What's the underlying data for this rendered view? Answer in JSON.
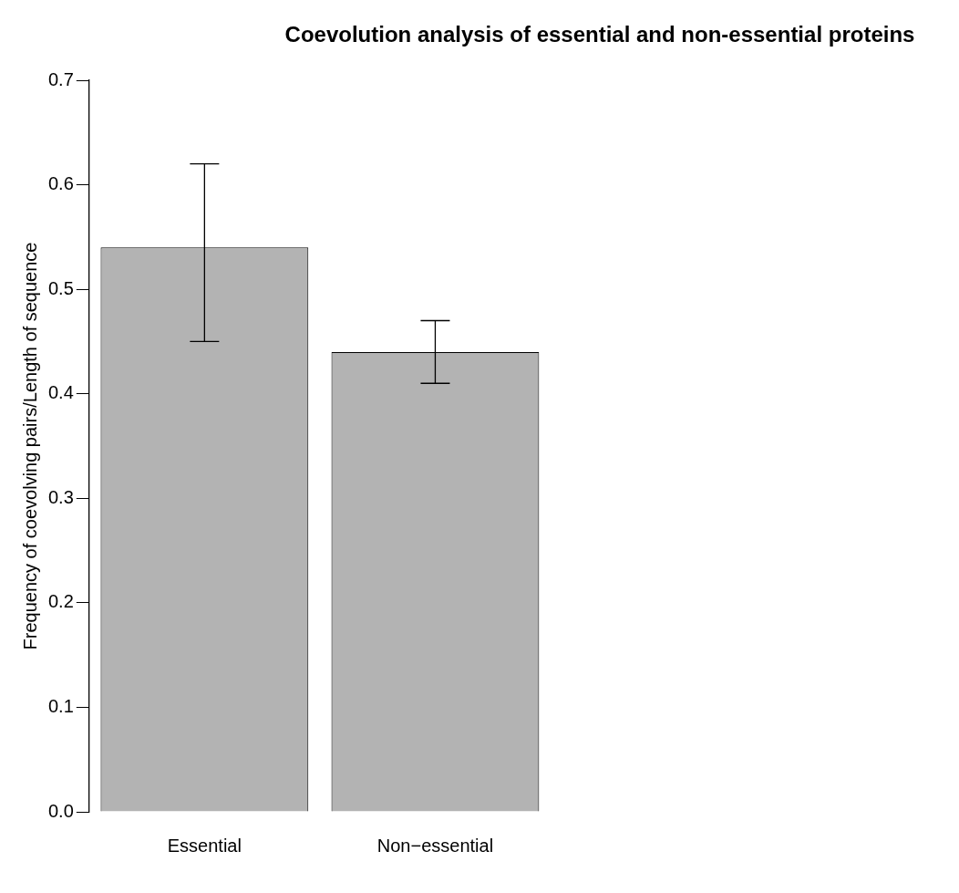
{
  "chart_data": {
    "type": "bar",
    "title": "Coevolution analysis of essential and non-essential proteins",
    "ylabel": "Frequency of coevolving pairs/Length of sequence",
    "categories": [
      "Essential",
      "Non−essential"
    ],
    "values": [
      0.54,
      0.44
    ],
    "errors": [
      [
        0.45,
        0.62
      ],
      [
        0.41,
        0.47
      ]
    ],
    "color": "#b3b3b3",
    "ylim": [
      0,
      0.7
    ],
    "yticks": [
      {
        "value": 0,
        "label": "0.0"
      },
      {
        "value": 0.1,
        "label": "0.1"
      },
      {
        "value": 0.2,
        "label": "0.2"
      },
      {
        "value": 0.3,
        "label": "0.3"
      },
      {
        "value": 0.4,
        "label": "0.4"
      },
      {
        "value": 0.5,
        "label": "0.5"
      },
      {
        "value": 0.6,
        "label": "0.6"
      },
      {
        "value": 0.7,
        "label": "0.7"
      }
    ],
    "legend": false
  }
}
